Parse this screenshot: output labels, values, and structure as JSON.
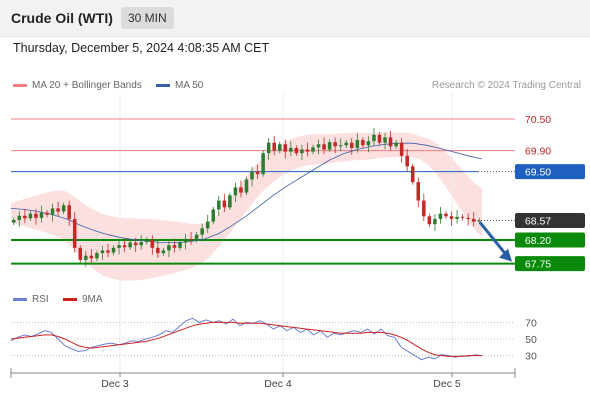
{
  "header": {
    "title": "Crude Oil (WTI)",
    "interval": "30 MIN"
  },
  "datetime": "Thursday, December 5, 2024 4:08:35 AM CET",
  "legend": {
    "ma20": "MA 20 + Bollinger Bands",
    "ma50": "MA 50",
    "credit": "Research © 2024 Trading Central"
  },
  "colors": {
    "up": "#2e7d32",
    "down": "#c62828",
    "ma20": "#f08080",
    "ma50": "#3a5ea8",
    "band": "#fbd5d5",
    "support": "#0a8a0a",
    "resistance": "#f08080",
    "pivot": "#1f5fbf",
    "arrow": "#2a5fa5",
    "rsi": "#6b7fd7",
    "rsi_ma": "#d02020"
  },
  "chart_data": [
    {
      "type": "candlestick",
      "x_ticks": [
        "Dec 3",
        "Dec 4",
        "Dec 5"
      ],
      "ylim": [
        67.4,
        70.9
      ],
      "levels": [
        {
          "value": 70.5,
          "label": "70.50",
          "kind": "resistance"
        },
        {
          "value": 69.9,
          "label": "69.90",
          "kind": "resistance"
        },
        {
          "value": 69.5,
          "label": "69.50",
          "kind": "pivot"
        },
        {
          "value": 68.57,
          "label": "68.57",
          "kind": "current"
        },
        {
          "value": 68.2,
          "label": "68.20",
          "kind": "support"
        },
        {
          "value": 67.75,
          "label": "67.75",
          "kind": "support"
        }
      ],
      "candles": [
        68.58,
        68.66,
        68.61,
        68.7,
        68.62,
        68.72,
        68.68,
        68.8,
        68.74,
        68.86,
        68.6,
        68.05,
        67.82,
        67.9,
        67.85,
        67.95,
        68.0,
        67.96,
        68.05,
        68.1,
        68.06,
        68.15,
        68.1,
        68.16,
        68.2,
        68.05,
        67.95,
        68.0,
        68.1,
        68.05,
        68.15,
        68.22,
        68.2,
        68.3,
        68.42,
        68.55,
        68.78,
        68.95,
        68.82,
        69.05,
        69.2,
        69.1,
        69.35,
        69.5,
        69.45,
        69.85,
        70.05,
        69.9,
        70.02,
        69.88,
        69.95,
        69.85,
        69.92,
        69.88,
        69.96,
        70.02,
        69.92,
        70.06,
        69.98,
        70.0,
        70.05,
        69.95,
        70.1,
        70.0,
        70.08,
        70.2,
        70.05,
        70.15,
        69.98,
        70.05,
        69.8,
        69.6,
        69.3,
        68.95,
        68.65,
        68.5,
        68.6,
        68.7,
        68.65,
        68.6,
        68.64,
        68.62,
        68.6,
        68.55,
        68.57
      ],
      "ma20": [
        68.72,
        68.72,
        68.72,
        68.72,
        68.72,
        68.72,
        68.7,
        68.66,
        68.54,
        68.4,
        68.28,
        68.18,
        68.1,
        68.06,
        68.03,
        68.02,
        68.02,
        68.02,
        68.03,
        68.04,
        68.05,
        68.06,
        68.07,
        68.08,
        68.1,
        68.15,
        68.25,
        68.4,
        68.58,
        68.78,
        68.98,
        69.18,
        69.35,
        69.5,
        69.62,
        69.72,
        69.8,
        69.86,
        69.9,
        69.92,
        69.93,
        69.93,
        69.95,
        69.96,
        69.97,
        69.98,
        69.98,
        69.99,
        70.0,
        70.01,
        70.01,
        70.01,
        70.0,
        69.95,
        69.88,
        69.76,
        69.6,
        69.42,
        69.22,
        69.02,
        68.84,
        68.72
      ],
      "ma50": [
        68.8,
        68.78,
        68.74,
        68.68,
        68.6,
        68.48,
        68.38,
        68.3,
        68.24,
        68.2,
        68.17,
        68.15,
        68.15,
        68.17,
        68.22,
        68.32,
        68.48,
        68.66,
        68.86,
        69.06,
        69.24,
        69.4,
        69.56,
        69.72,
        69.84,
        69.92,
        69.98,
        70.02,
        70.04,
        70.04,
        70.0,
        69.94,
        69.87,
        69.8,
        69.74
      ]
    },
    {
      "type": "line",
      "name": "RSI",
      "legend": [
        "RSI",
        "9MA"
      ],
      "yticks": [
        "70",
        "50",
        "30"
      ],
      "ylim": [
        15,
        85
      ],
      "rsi": [
        48,
        52,
        55,
        53,
        56,
        60,
        58,
        50,
        42,
        38,
        35,
        36,
        40,
        42,
        44,
        45,
        43,
        45,
        48,
        47,
        50,
        52,
        55,
        60,
        58,
        65,
        72,
        75,
        70,
        73,
        70,
        72,
        68,
        74,
        66,
        70,
        69,
        72,
        68,
        62,
        66,
        60,
        64,
        58,
        62,
        55,
        60,
        52,
        57,
        55,
        58,
        60,
        58,
        62,
        56,
        62,
        54,
        52,
        40,
        35,
        30,
        25,
        28,
        26,
        31,
        30,
        28,
        30,
        29,
        31,
        30
      ],
      "rsi_ma": [
        50,
        51,
        52,
        53,
        54,
        55,
        55,
        53,
        50,
        46,
        42,
        40,
        39,
        40,
        41,
        42,
        43,
        44,
        45,
        46,
        47,
        49,
        51,
        54,
        57,
        60,
        63,
        66,
        68,
        69,
        70,
        70,
        70,
        70,
        69,
        69,
        69,
        69,
        68,
        67,
        66,
        65,
        64,
        63,
        62,
        61,
        60,
        59,
        58,
        57,
        57,
        57,
        57,
        58,
        58,
        58,
        57,
        55,
        52,
        48,
        43,
        38,
        34,
        31,
        30,
        29,
        29,
        29,
        30,
        30,
        30
      ]
    }
  ]
}
